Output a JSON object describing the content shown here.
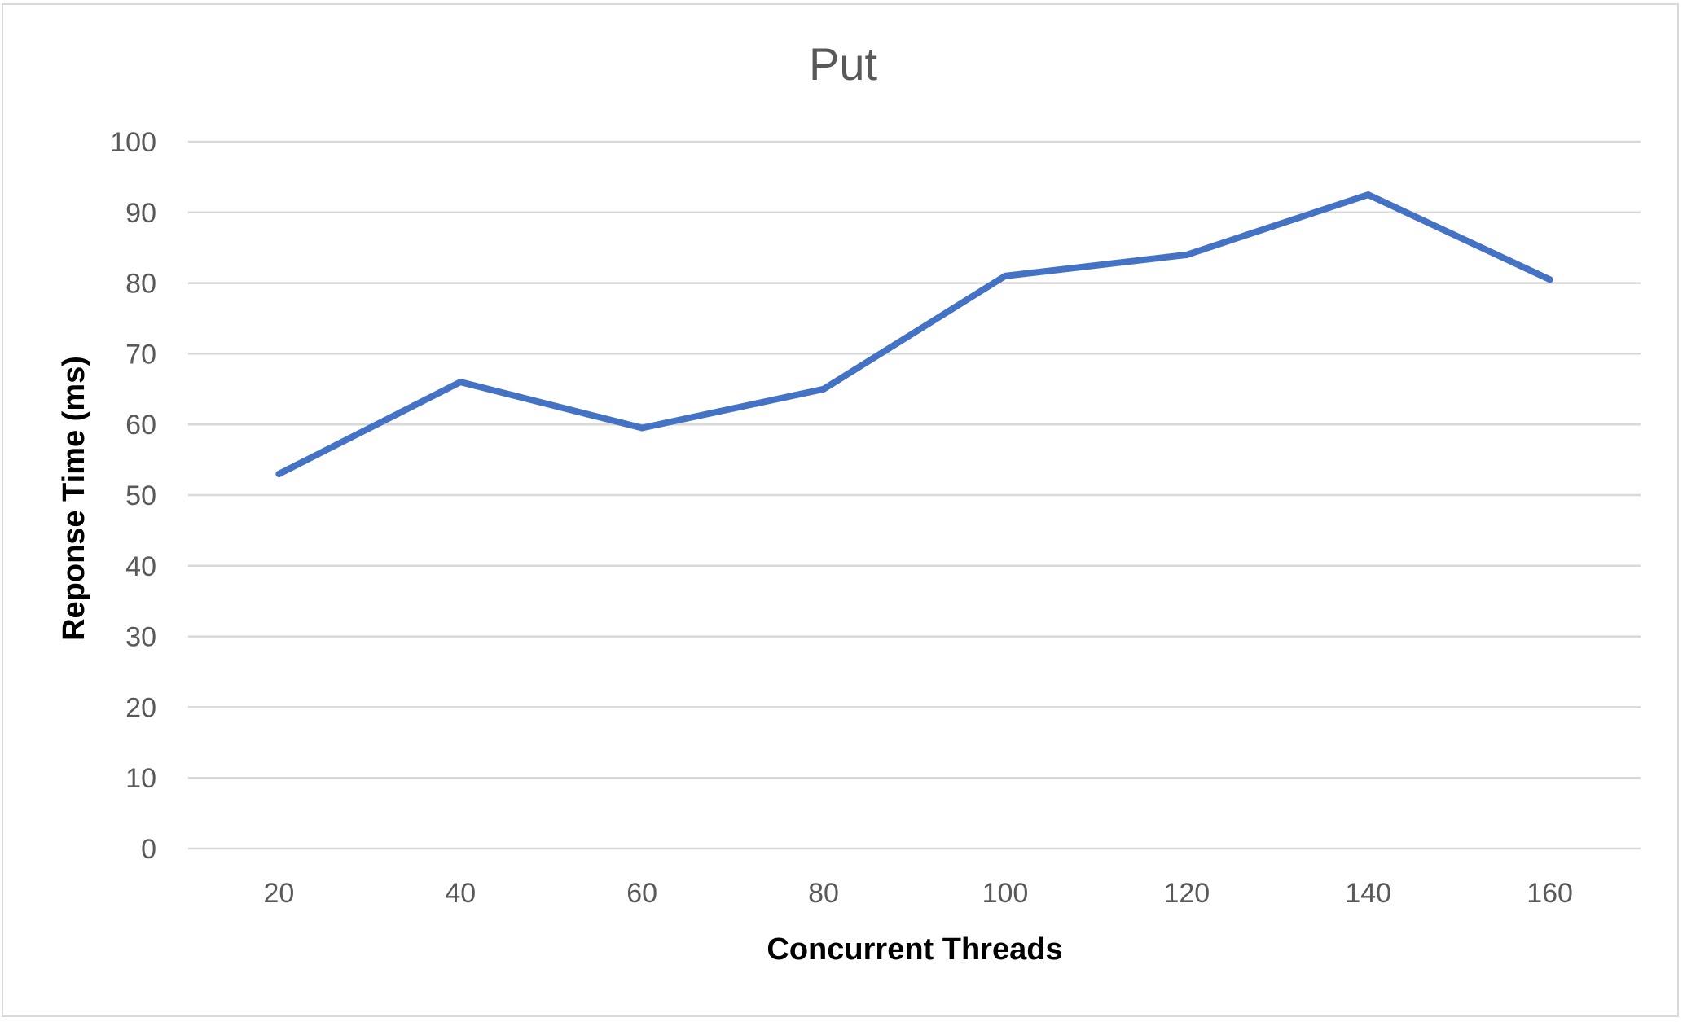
{
  "chart_data": {
    "type": "line",
    "title": "Put",
    "xlabel": "Concurrent Threads",
    "ylabel": "Reponse Time (ms)",
    "x": [
      "20",
      "40",
      "60",
      "80",
      "100",
      "120",
      "140",
      "160"
    ],
    "series": [
      {
        "values": [
          53,
          66,
          59.5,
          65,
          81,
          84,
          92.5,
          80.5
        ],
        "color": "#4472c4"
      }
    ],
    "ylim": [
      0,
      100
    ],
    "yticks": [
      "0",
      "10",
      "20",
      "30",
      "40",
      "50",
      "60",
      "70",
      "80",
      "90",
      "100"
    ],
    "grid": true,
    "legend": "none"
  }
}
